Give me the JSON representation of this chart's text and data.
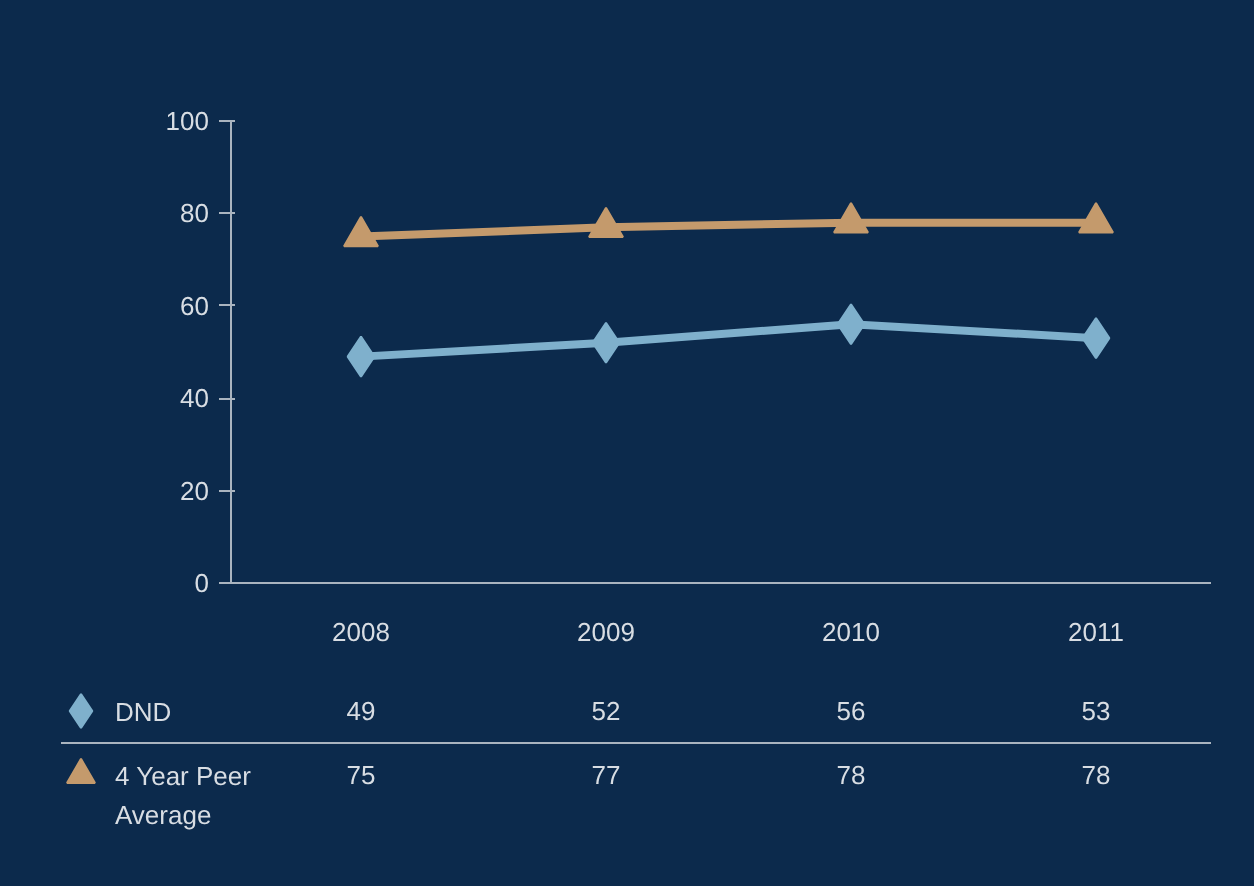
{
  "chart_data": {
    "type": "line",
    "categories": [
      "2008",
      "2009",
      "2010",
      "2011"
    ],
    "series": [
      {
        "name": "DND",
        "color": "#7fb0cc",
        "values": [
          49,
          52,
          56,
          53
        ],
        "marker": "diamond"
      },
      {
        "name": "4 Year Peer Average",
        "color": "#c49a6c",
        "values": [
          75,
          77,
          78,
          78
        ],
        "marker": "triangle"
      }
    ],
    "ylim": [
      0,
      100
    ],
    "yticks": [
      0,
      20,
      40,
      60,
      80,
      100
    ],
    "grid": false,
    "legend": "bottom",
    "data_labels": true,
    "line_style": "solid"
  }
}
